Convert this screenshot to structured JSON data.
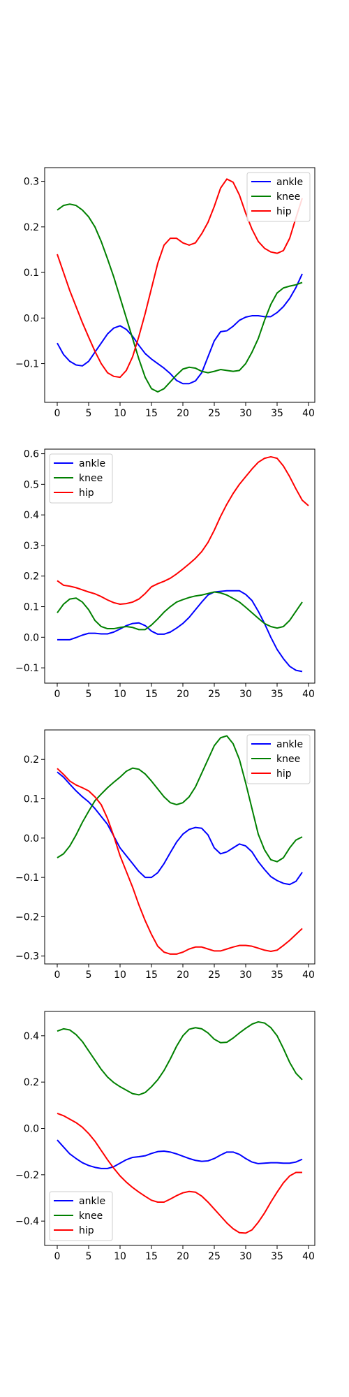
{
  "chart_data": [
    {
      "type": "line",
      "xlim": [
        -2,
        41
      ],
      "ylim": [
        -0.185,
        0.33
      ],
      "xticks": [
        0,
        5,
        10,
        15,
        20,
        25,
        30,
        35,
        40
      ],
      "yticks": [
        -0.1,
        0.0,
        0.1,
        0.2,
        0.3
      ],
      "legend": "top-right",
      "series": [
        {
          "name": "ankle",
          "color": "#0000ff",
          "x_start": 0,
          "values": [
            -0.055,
            -0.08,
            -0.095,
            -0.103,
            -0.105,
            -0.095,
            -0.075,
            -0.055,
            -0.035,
            -0.022,
            -0.017,
            -0.025,
            -0.04,
            -0.06,
            -0.078,
            -0.09,
            -0.1,
            -0.11,
            -0.122,
            -0.137,
            -0.144,
            -0.144,
            -0.138,
            -0.12,
            -0.085,
            -0.05,
            -0.03,
            -0.028,
            -0.018,
            -0.005,
            0.002,
            0.005,
            0.005,
            0.003,
            0.003,
            0.012,
            0.025,
            0.043,
            0.067,
            0.097
          ]
        },
        {
          "name": "knee",
          "color": "#008000",
          "x_start": 0,
          "values": [
            0.237,
            0.247,
            0.25,
            0.247,
            0.237,
            0.222,
            0.2,
            0.168,
            0.13,
            0.09,
            0.045,
            0.0,
            -0.045,
            -0.09,
            -0.13,
            -0.155,
            -0.162,
            -0.155,
            -0.14,
            -0.125,
            -0.112,
            -0.108,
            -0.11,
            -0.117,
            -0.12,
            -0.117,
            -0.113,
            -0.115,
            -0.117,
            -0.115,
            -0.1,
            -0.075,
            -0.045,
            -0.005,
            0.03,
            0.055,
            0.066,
            0.07,
            0.073,
            0.078
          ]
        },
        {
          "name": "hip",
          "color": "#ff0000",
          "x_start": 0,
          "values": [
            0.14,
            0.1,
            0.06,
            0.025,
            -0.01,
            -0.042,
            -0.073,
            -0.1,
            -0.12,
            -0.128,
            -0.13,
            -0.115,
            -0.085,
            -0.04,
            0.01,
            0.065,
            0.12,
            0.16,
            0.175,
            0.175,
            0.165,
            0.16,
            0.165,
            0.185,
            0.21,
            0.245,
            0.285,
            0.305,
            0.298,
            0.27,
            0.23,
            0.195,
            0.168,
            0.153,
            0.145,
            0.142,
            0.148,
            0.175,
            0.22,
            0.263
          ]
        }
      ]
    },
    {
      "type": "line",
      "xlim": [
        -2,
        41
      ],
      "ylim": [
        -0.15,
        0.615
      ],
      "xticks": [
        0,
        5,
        10,
        15,
        20,
        25,
        30,
        35,
        40
      ],
      "yticks": [
        -0.1,
        0.0,
        0.1,
        0.2,
        0.3,
        0.4,
        0.5,
        0.6
      ],
      "legend": "top-left",
      "series": [
        {
          "name": "ankle",
          "color": "#0000ff",
          "x_start": 0,
          "values": [
            -0.008,
            -0.008,
            -0.008,
            -0.001,
            0.007,
            0.013,
            0.013,
            0.011,
            0.011,
            0.017,
            0.027,
            0.038,
            0.045,
            0.047,
            0.038,
            0.02,
            0.01,
            0.01,
            0.017,
            0.03,
            0.045,
            0.065,
            0.09,
            0.115,
            0.138,
            0.148,
            0.15,
            0.152,
            0.152,
            0.152,
            0.14,
            0.12,
            0.085,
            0.045,
            0.0,
            -0.04,
            -0.07,
            -0.095,
            -0.108,
            -0.112
          ]
        },
        {
          "name": "knee",
          "color": "#008000",
          "x_start": 0,
          "values": [
            0.08,
            0.108,
            0.125,
            0.128,
            0.115,
            0.09,
            0.055,
            0.035,
            0.028,
            0.028,
            0.032,
            0.035,
            0.032,
            0.025,
            0.025,
            0.04,
            0.06,
            0.082,
            0.1,
            0.115,
            0.123,
            0.13,
            0.135,
            0.138,
            0.143,
            0.148,
            0.145,
            0.138,
            0.127,
            0.115,
            0.098,
            0.08,
            0.062,
            0.045,
            0.035,
            0.03,
            0.035,
            0.055,
            0.085,
            0.115
          ]
        },
        {
          "name": "hip",
          "color": "#ff0000",
          "x_start": 0,
          "values": [
            0.185,
            0.17,
            0.167,
            0.162,
            0.155,
            0.148,
            0.142,
            0.133,
            0.122,
            0.113,
            0.108,
            0.11,
            0.115,
            0.125,
            0.143,
            0.165,
            0.175,
            0.183,
            0.193,
            0.207,
            0.223,
            0.24,
            0.258,
            0.28,
            0.31,
            0.35,
            0.395,
            0.435,
            0.47,
            0.5,
            0.525,
            0.55,
            0.572,
            0.585,
            0.59,
            0.585,
            0.56,
            0.525,
            0.485,
            0.448,
            0.43
          ]
        }
      ]
    },
    {
      "type": "line",
      "xlim": [
        -2,
        41
      ],
      "ylim": [
        -0.32,
        0.275
      ],
      "xticks": [
        0,
        5,
        10,
        15,
        20,
        25,
        30,
        35,
        40
      ],
      "yticks": [
        -0.3,
        -0.2,
        -0.1,
        0.0,
        0.1,
        0.2
      ],
      "legend": "top-right",
      "series": [
        {
          "name": "ankle",
          "color": "#0000ff",
          "x_start": 0,
          "values": [
            0.168,
            0.155,
            0.137,
            0.12,
            0.105,
            0.092,
            0.075,
            0.055,
            0.035,
            0.005,
            -0.025,
            -0.045,
            -0.065,
            -0.085,
            -0.1,
            -0.1,
            -0.088,
            -0.065,
            -0.037,
            -0.01,
            0.01,
            0.022,
            0.027,
            0.025,
            0.008,
            -0.025,
            -0.04,
            -0.035,
            -0.025,
            -0.015,
            -0.02,
            -0.035,
            -0.06,
            -0.08,
            -0.098,
            -0.108,
            -0.115,
            -0.118,
            -0.11,
            -0.087
          ]
        },
        {
          "name": "knee",
          "color": "#008000",
          "x_start": 0,
          "values": [
            -0.05,
            -0.04,
            -0.02,
            0.008,
            0.04,
            0.068,
            0.095,
            0.112,
            0.128,
            0.142,
            0.155,
            0.17,
            0.178,
            0.175,
            0.163,
            0.145,
            0.125,
            0.105,
            0.09,
            0.085,
            0.09,
            0.105,
            0.13,
            0.165,
            0.2,
            0.235,
            0.255,
            0.26,
            0.24,
            0.2,
            0.14,
            0.075,
            0.01,
            -0.03,
            -0.055,
            -0.06,
            -0.05,
            -0.025,
            -0.005,
            0.003
          ]
        },
        {
          "name": "hip",
          "color": "#ff0000",
          "x_start": 0,
          "values": [
            0.177,
            0.162,
            0.145,
            0.135,
            0.128,
            0.12,
            0.105,
            0.085,
            0.05,
            0.005,
            -0.045,
            -0.085,
            -0.125,
            -0.17,
            -0.21,
            -0.245,
            -0.275,
            -0.29,
            -0.295,
            -0.295,
            -0.29,
            -0.282,
            -0.277,
            -0.277,
            -0.282,
            -0.287,
            -0.287,
            -0.282,
            -0.277,
            -0.273,
            -0.273,
            -0.275,
            -0.28,
            -0.285,
            -0.288,
            -0.285,
            -0.273,
            -0.26,
            -0.245,
            -0.23
          ]
        }
      ]
    },
    {
      "type": "line",
      "xlim": [
        -2,
        41
      ],
      "ylim": [
        -0.505,
        0.505
      ],
      "xticks": [
        0,
        5,
        10,
        15,
        20,
        25,
        30,
        35,
        40
      ],
      "yticks": [
        -0.4,
        -0.2,
        0.0,
        0.2,
        0.4
      ],
      "legend": "bottom-left",
      "series": [
        {
          "name": "ankle",
          "color": "#0000ff",
          "x_start": 0,
          "values": [
            -0.05,
            -0.08,
            -0.11,
            -0.13,
            -0.148,
            -0.16,
            -0.168,
            -0.173,
            -0.173,
            -0.165,
            -0.15,
            -0.135,
            -0.125,
            -0.122,
            -0.118,
            -0.108,
            -0.1,
            -0.098,
            -0.102,
            -0.11,
            -0.12,
            -0.13,
            -0.138,
            -0.142,
            -0.14,
            -0.13,
            -0.115,
            -0.102,
            -0.102,
            -0.112,
            -0.13,
            -0.145,
            -0.152,
            -0.15,
            -0.148,
            -0.148,
            -0.15,
            -0.15,
            -0.145,
            -0.133
          ]
        },
        {
          "name": "knee",
          "color": "#008000",
          "x_start": 0,
          "values": [
            0.42,
            0.43,
            0.425,
            0.405,
            0.375,
            0.335,
            0.295,
            0.255,
            0.222,
            0.198,
            0.18,
            0.165,
            0.15,
            0.145,
            0.155,
            0.18,
            0.21,
            0.25,
            0.3,
            0.355,
            0.4,
            0.428,
            0.435,
            0.43,
            0.412,
            0.385,
            0.37,
            0.372,
            0.39,
            0.412,
            0.432,
            0.45,
            0.46,
            0.455,
            0.435,
            0.4,
            0.345,
            0.285,
            0.238,
            0.21
          ]
        },
        {
          "name": "hip",
          "color": "#ff0000",
          "x_start": 0,
          "values": [
            0.065,
            0.055,
            0.04,
            0.025,
            0.005,
            -0.022,
            -0.055,
            -0.095,
            -0.135,
            -0.172,
            -0.205,
            -0.232,
            -0.255,
            -0.275,
            -0.293,
            -0.31,
            -0.318,
            -0.318,
            -0.305,
            -0.29,
            -0.278,
            -0.272,
            -0.275,
            -0.292,
            -0.318,
            -0.348,
            -0.378,
            -0.408,
            -0.433,
            -0.45,
            -0.452,
            -0.438,
            -0.405,
            -0.365,
            -0.318,
            -0.275,
            -0.235,
            -0.205,
            -0.19,
            -0.19
          ]
        }
      ]
    }
  ]
}
